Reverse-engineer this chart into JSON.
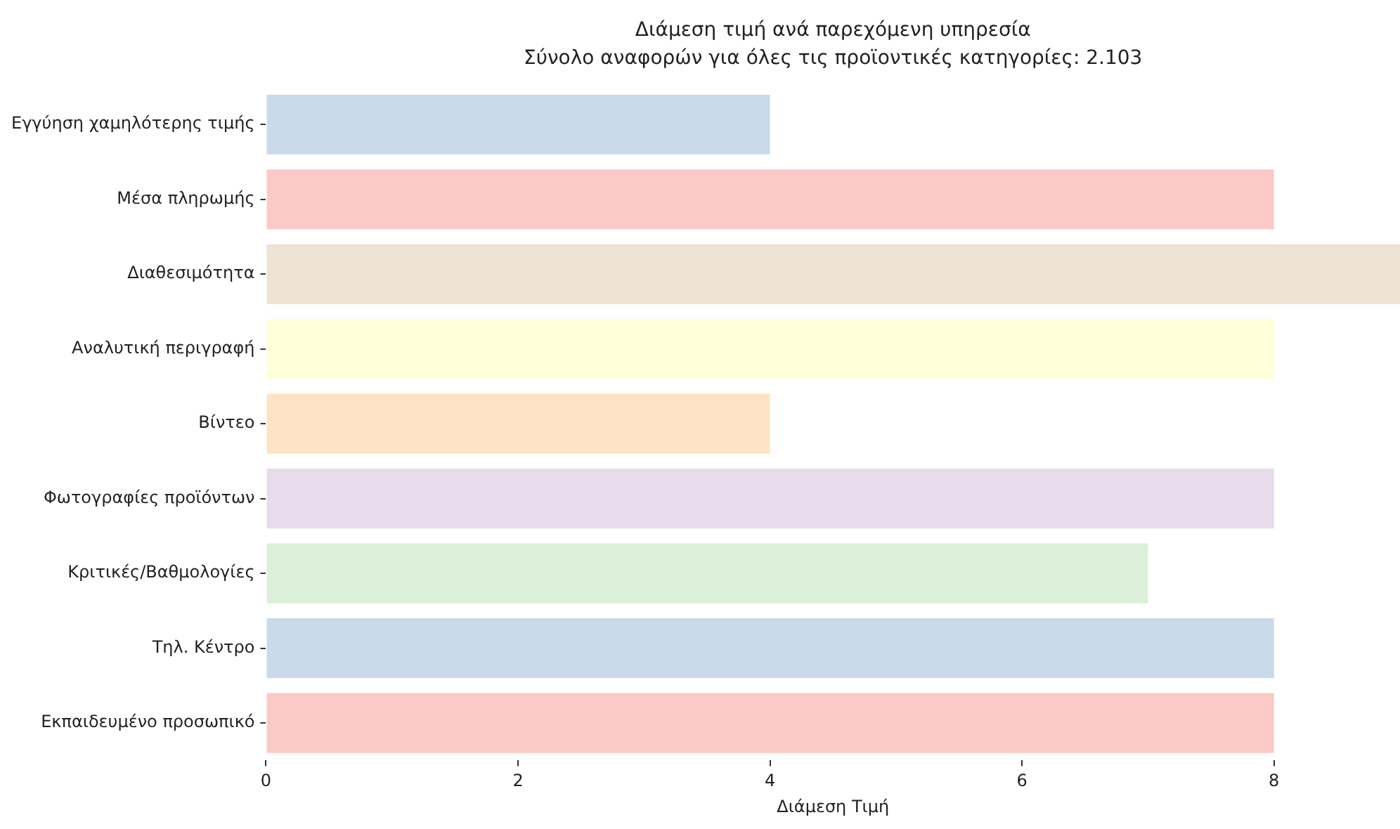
{
  "chart_data": {
    "type": "bar",
    "orientation": "horizontal",
    "title": "Διάμεση τιμή ανά παρεχόμενη υπηρεσία",
    "subtitle": "Σύνολο αναφορών για όλες τις προϊοντικές κατηγορίες: 2.103",
    "xlabel": "Διάμεση Τιμή",
    "categories": [
      "Εγγύηση χαμηλότερης τιμής",
      "Μέσα πληρωμής",
      "Διαθεσιμότητα",
      "Αναλυτική περιγραφή",
      "Βίντεο",
      "Φωτογραφίες προϊόντων",
      "Κριτικές/Βαθμολογίες",
      "Τηλ. Κέντρο",
      "Εκπαιδευμένο προσωπικό"
    ],
    "values": [
      4,
      8,
      9,
      8,
      4,
      8,
      7,
      8,
      8
    ],
    "colors": [
      "#c9daea",
      "#fbcac6",
      "#ece3d2",
      "#ffffd9",
      "#fee3c4",
      "#e7dbec",
      "#dcefd8",
      "#c9daea",
      "#fbcac6"
    ],
    "xlim": [
      0,
      9
    ],
    "xticks": [
      0,
      2,
      4,
      6,
      8
    ],
    "grid": false,
    "legend": false
  }
}
